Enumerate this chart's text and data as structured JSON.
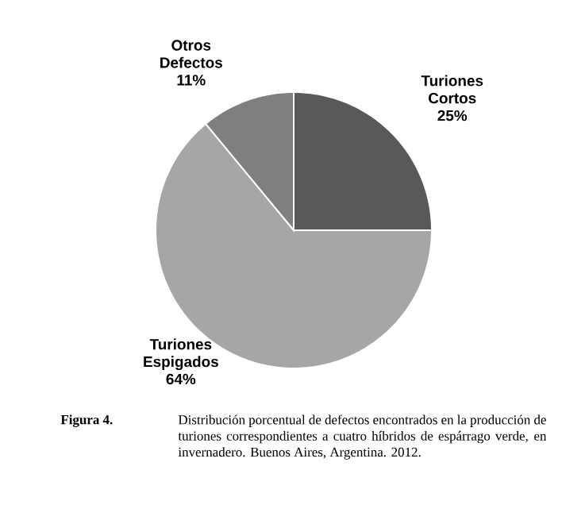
{
  "chart_data": {
    "type": "pie",
    "categories": [
      "Turiones Cortos",
      "Turiones Espigados",
      "Otros Defectos"
    ],
    "values": [
      25,
      64,
      11
    ],
    "value_labels": [
      "25%",
      "64%",
      "11%"
    ],
    "colors": [
      "#595959",
      "#a6a6a6",
      "#7f7f7f"
    ],
    "annotations": [
      "**Figura 4.**",
      "Distribución porcentual de defectos encontrados en la producción de turiones correspondientes a cuatro híbridos de espárrago verde, en invernadero. Buenos Aires, Argentina. 2012."
    ]
  }
}
